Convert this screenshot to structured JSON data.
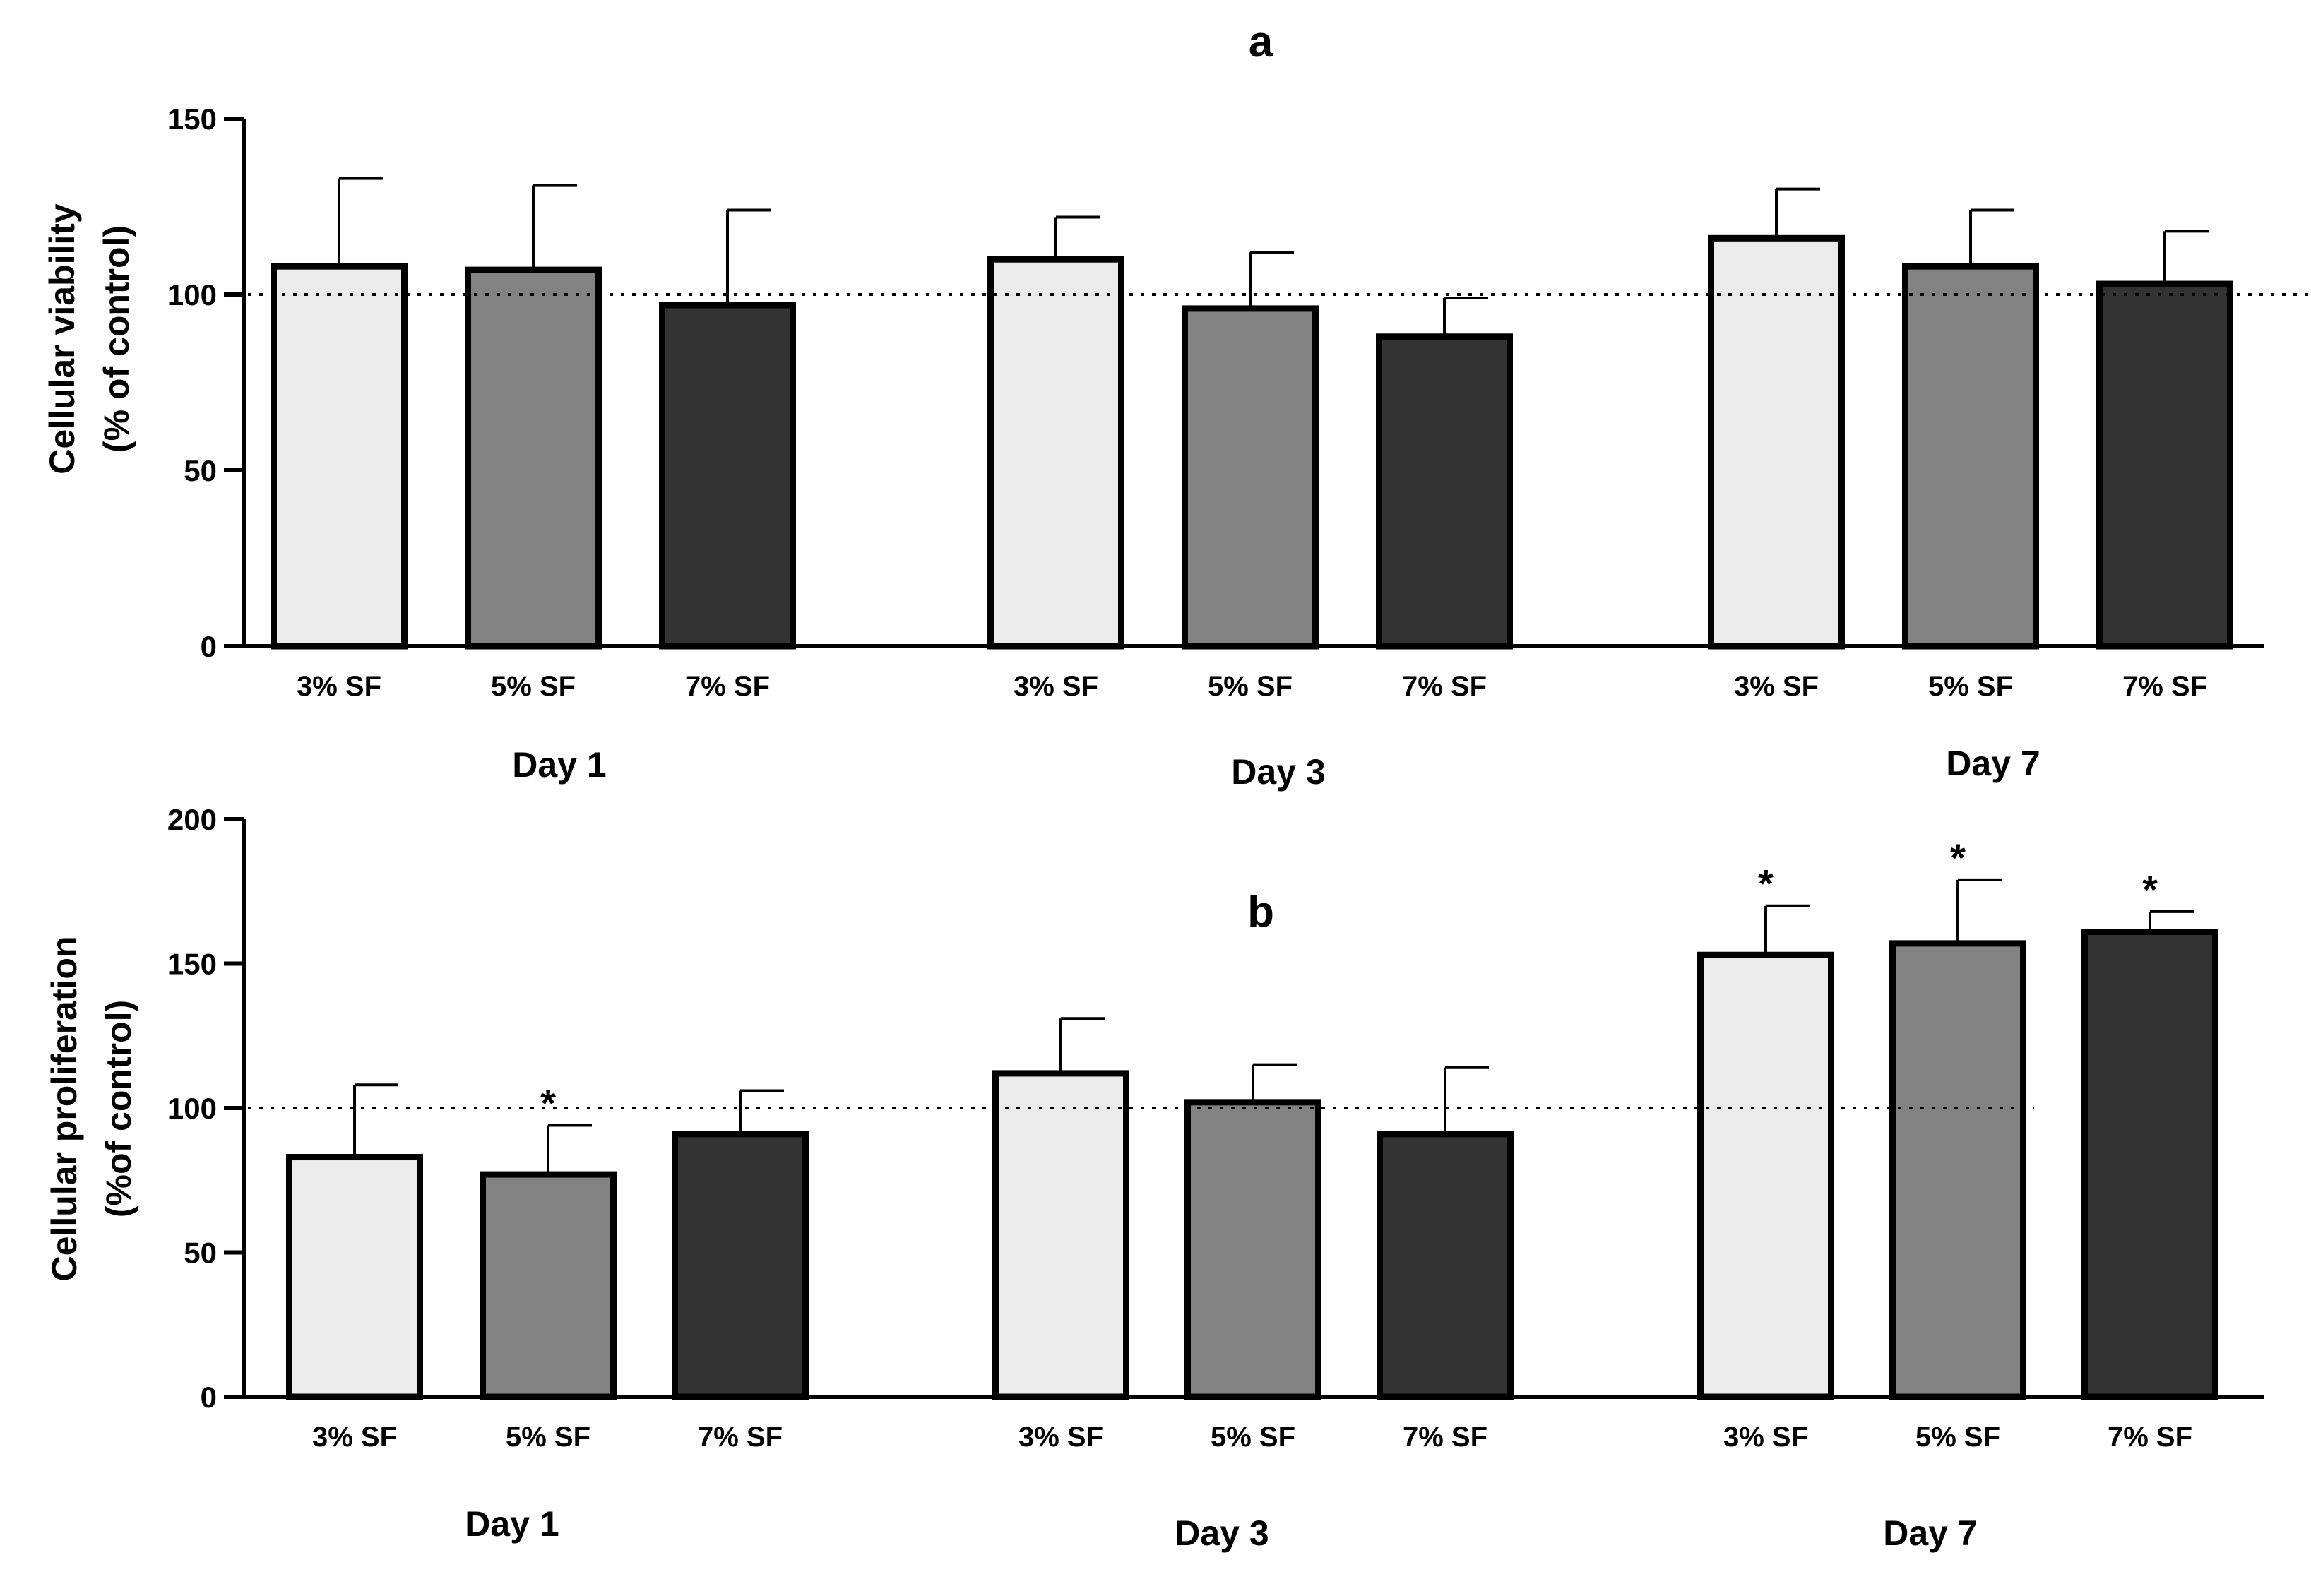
{
  "chart_data": [
    {
      "type": "bar",
      "panel": "a",
      "title": "a",
      "ylabel_line1": "Cellular viability",
      "ylabel_line2": "(% of control)",
      "xlabel": "",
      "ylim": [
        0,
        150
      ],
      "yticks": [
        0,
        50,
        100,
        150
      ],
      "ytick_labels": [
        "0",
        "50",
        "100",
        "150"
      ],
      "reference_line": 100,
      "groups": [
        "Day 1",
        "Day 3",
        "Day 7"
      ],
      "categories": [
        {
          "group": 0,
          "label": "3% SF",
          "value": 108,
          "error": 25,
          "fill": "#ebebeb",
          "sig": ""
        },
        {
          "group": 0,
          "label": "5% SF",
          "value": 107,
          "error": 24,
          "fill": "#828282",
          "sig": ""
        },
        {
          "group": 0,
          "label": "7% SF",
          "value": 97,
          "error": 27,
          "fill": "#333333",
          "sig": ""
        },
        {
          "group": 1,
          "label": "3% SF",
          "value": 110,
          "error": 12,
          "fill": "#ebebeb",
          "sig": ""
        },
        {
          "group": 1,
          "label": "5% SF",
          "value": 96,
          "error": 16,
          "fill": "#828282",
          "sig": ""
        },
        {
          "group": 1,
          "label": "7% SF",
          "value": 88,
          "error": 11,
          "fill": "#333333",
          "sig": ""
        },
        {
          "group": 2,
          "label": "3% SF",
          "value": 116,
          "error": 14,
          "fill": "#ebebeb",
          "sig": ""
        },
        {
          "group": 2,
          "label": "5% SF",
          "value": 108,
          "error": 16,
          "fill": "#828282",
          "sig": ""
        },
        {
          "group": 2,
          "label": "7% SF",
          "value": 103,
          "error": 15,
          "fill": "#333333",
          "sig": ""
        }
      ]
    },
    {
      "type": "bar",
      "panel": "b",
      "title": "b",
      "ylabel_line1": "Cellular proliferation",
      "ylabel_line2": "(%of control)",
      "xlabel": "",
      "ylim": [
        0,
        200
      ],
      "yticks": [
        0,
        50,
        100,
        150,
        200
      ],
      "ytick_labels": [
        "0",
        "50",
        "100",
        "150",
        "200"
      ],
      "reference_line": 100,
      "groups": [
        "Day 1",
        "Day 3",
        "Day 7"
      ],
      "categories": [
        {
          "group": 0,
          "label": "3% SF",
          "value": 83,
          "error": 25,
          "fill": "#ebebeb",
          "sig": ""
        },
        {
          "group": 0,
          "label": "5% SF",
          "value": 77,
          "error": 17,
          "fill": "#828282",
          "sig": "*"
        },
        {
          "group": 0,
          "label": "7% SF",
          "value": 91,
          "error": 15,
          "fill": "#333333",
          "sig": ""
        },
        {
          "group": 1,
          "label": "3% SF",
          "value": 112,
          "error": 19,
          "fill": "#ebebeb",
          "sig": ""
        },
        {
          "group": 1,
          "label": "5% SF",
          "value": 102,
          "error": 13,
          "fill": "#828282",
          "sig": ""
        },
        {
          "group": 1,
          "label": "7% SF",
          "value": 91,
          "error": 23,
          "fill": "#333333",
          "sig": ""
        },
        {
          "group": 2,
          "label": "3% SF",
          "value": 153,
          "error": 17,
          "fill": "#ebebeb",
          "sig": "*"
        },
        {
          "group": 2,
          "label": "5% SF",
          "value": 157,
          "error": 22,
          "fill": "#828282",
          "sig": "*"
        },
        {
          "group": 2,
          "label": "7% SF",
          "value": 161,
          "error": 7,
          "fill": "#333333",
          "sig": "*"
        }
      ]
    }
  ],
  "colors": {
    "axis": "#000000",
    "bar_outline": "#000000",
    "light_bar": "#ebebeb",
    "medium_bar": "#828282",
    "dark_bar": "#333333"
  }
}
